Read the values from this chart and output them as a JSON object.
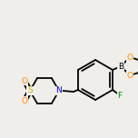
{
  "bg_color": "#f0eeea",
  "bond_width": 1.3,
  "font_size": 6.5,
  "atom_colors": {
    "B": "#000000",
    "O": "#ff8800",
    "N": "#0000ee",
    "F": "#008800",
    "S": "#ccaa00"
  },
  "figsize": [
    1.52,
    1.52
  ],
  "dpi": 100
}
